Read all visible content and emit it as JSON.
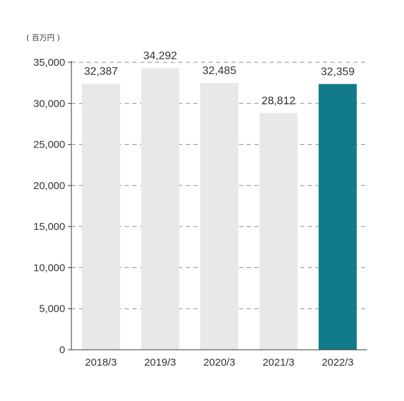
{
  "chart_data": {
    "type": "bar",
    "unit_label": "( 百万円 )",
    "categories": [
      "2018/3",
      "2019/3",
      "2020/3",
      "2021/3",
      "2022/3"
    ],
    "values": [
      32387,
      34292,
      32485,
      28812,
      32359
    ],
    "value_labels": [
      "32,387",
      "34,292",
      "32,485",
      "28,812",
      "32,359"
    ],
    "yticks": [
      0,
      5000,
      10000,
      15000,
      20000,
      25000,
      30000,
      35000
    ],
    "ytick_labels": [
      "0",
      "5,000",
      "10,000",
      "15,000",
      "20,000",
      "25,000",
      "30,000",
      "35,000"
    ],
    "ylim": [
      0,
      35000
    ],
    "grid": "dashed horizontal",
    "colors": {
      "default_bar": "#e8e8e8",
      "highlight_bar": "#117a8b",
      "grid": "#8a8a8a",
      "axis": "#333333"
    },
    "highlight_index": 4
  }
}
